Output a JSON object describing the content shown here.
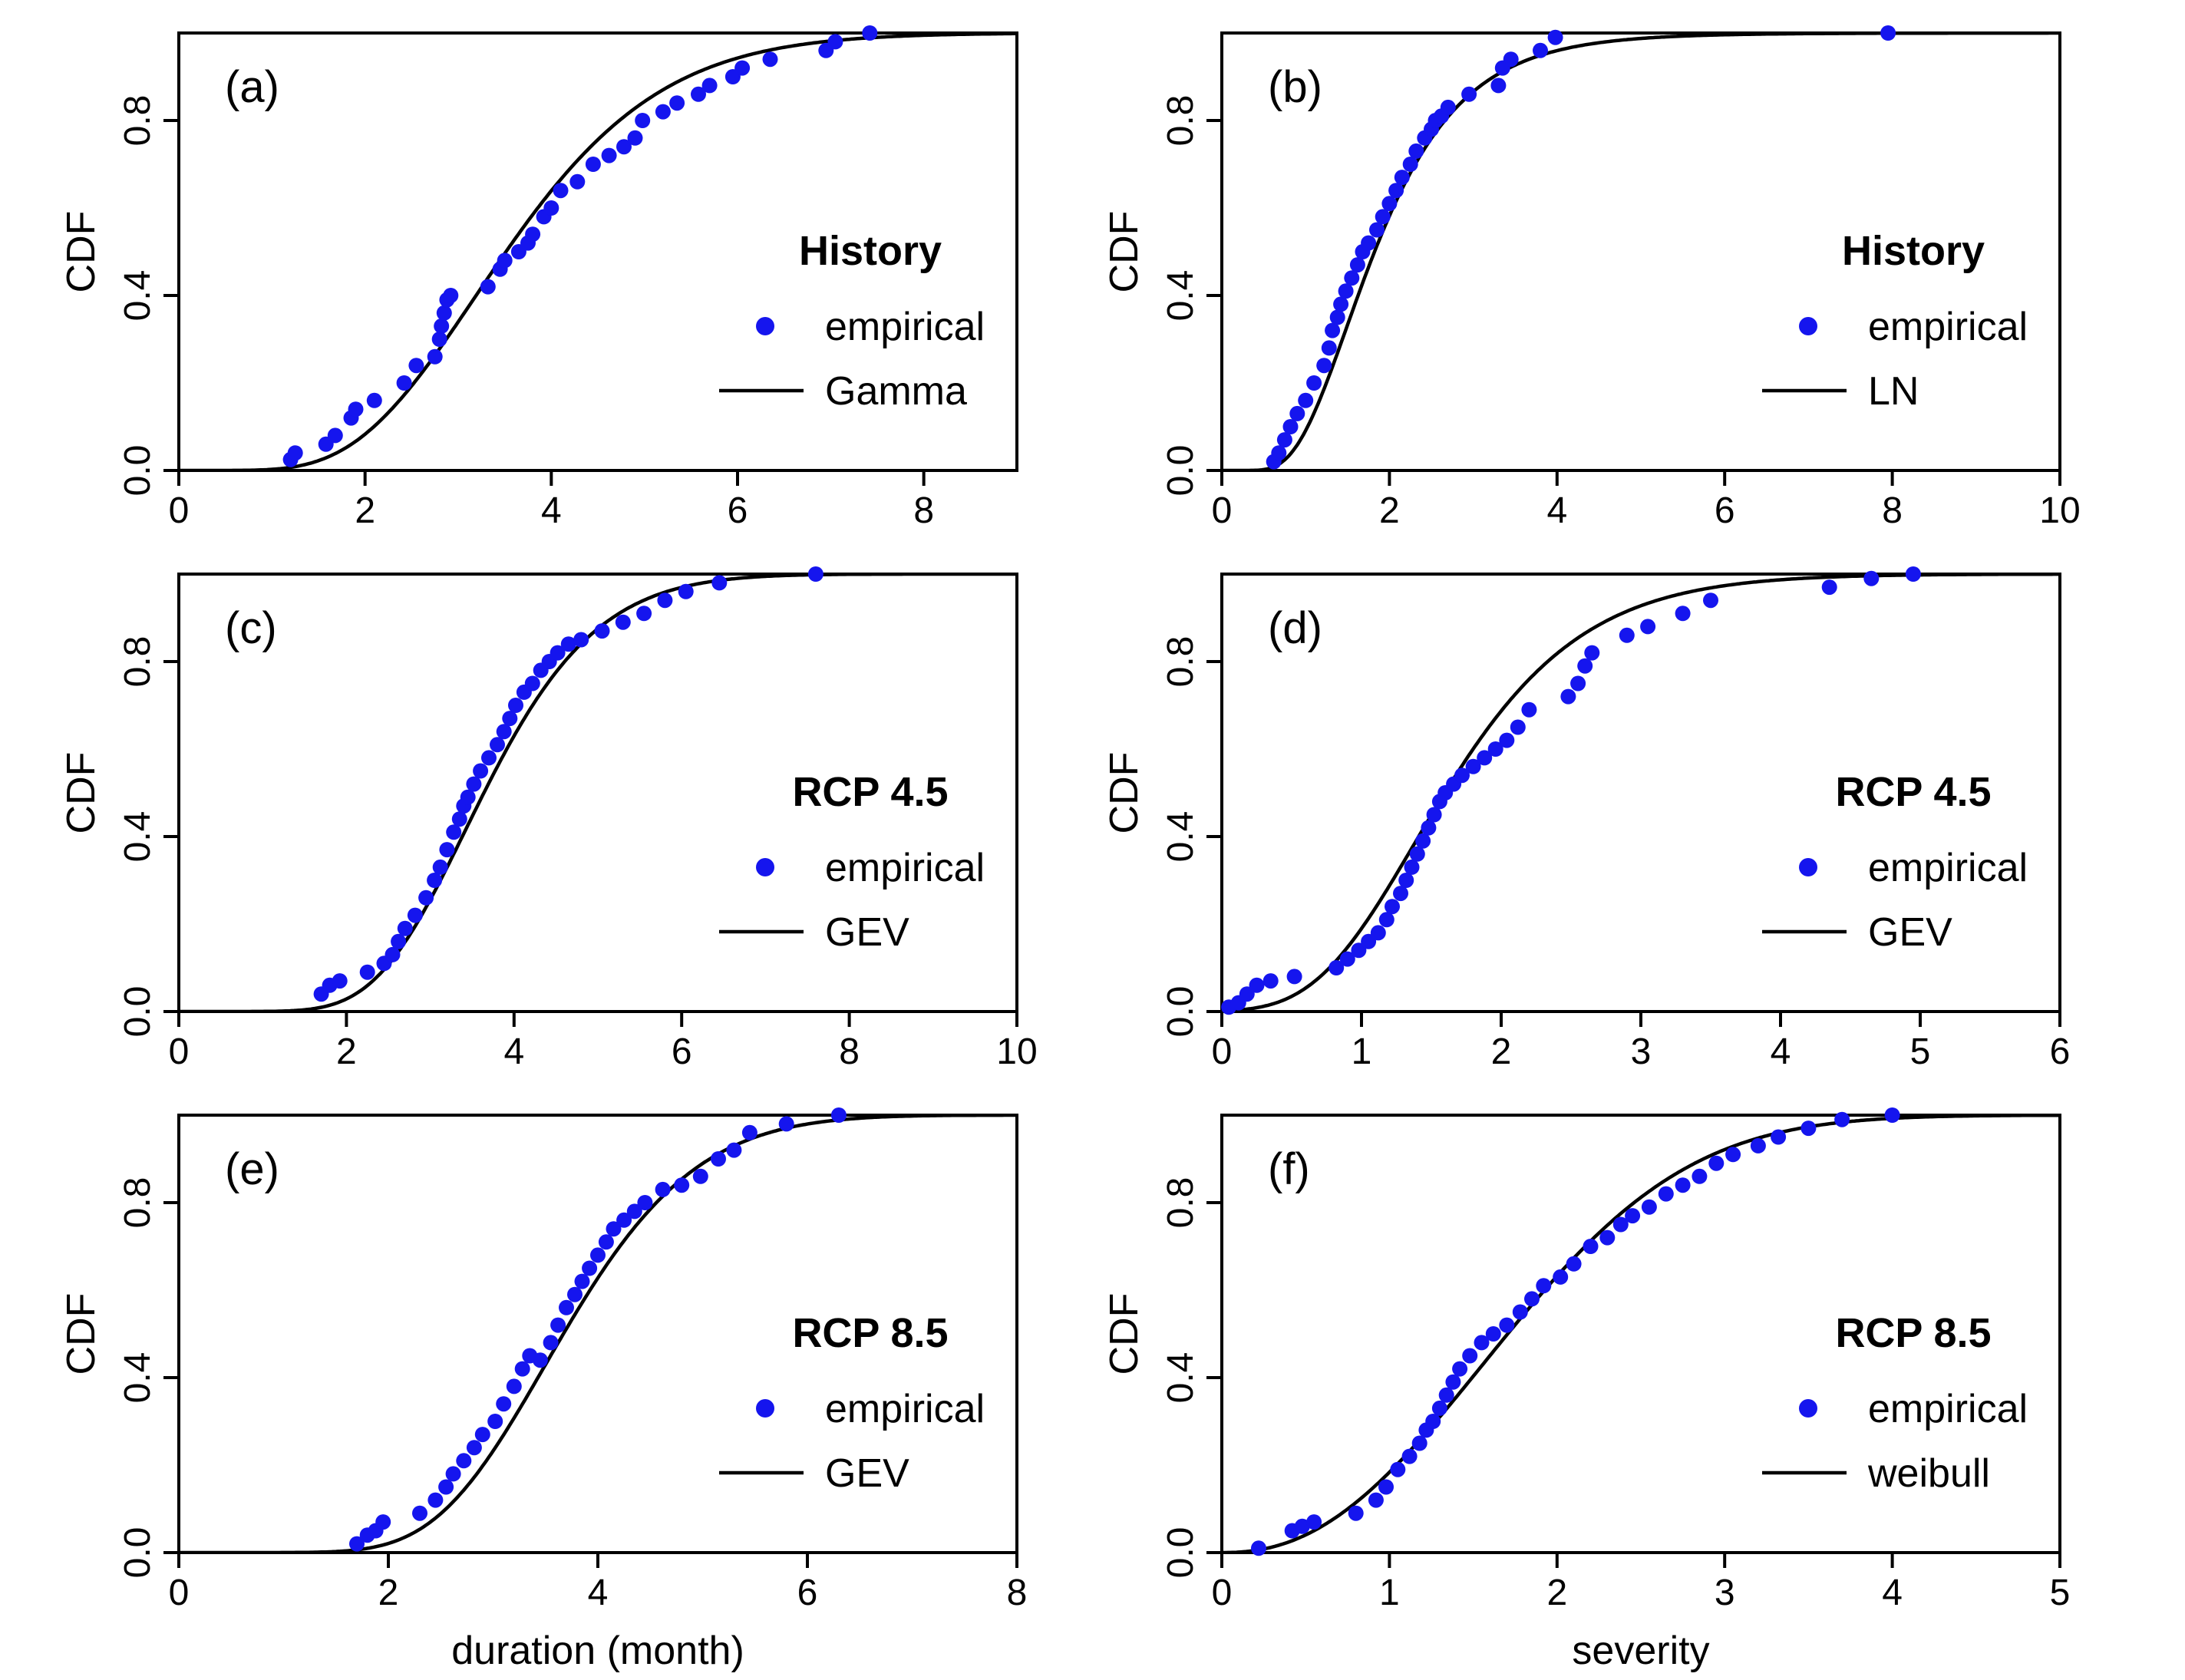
{
  "axis_colors": {
    "empirical": "#1515ee",
    "fitted": "#000000"
  },
  "chart_data": [
    {
      "type": "scatter",
      "panel_label": "(a)",
      "xlabel": "",
      "ylabel": "CDF",
      "xlim": [
        0,
        9
      ],
      "ylim": [
        0,
        1
      ],
      "xticks": [
        0,
        2,
        4,
        6,
        8
      ],
      "yticks": [
        0.0,
        0.4,
        0.8
      ],
      "ytick_labels": [
        "0.0",
        "0.4",
        "0.8"
      ],
      "legend_title": "History",
      "legend_position": "right",
      "series": [
        {
          "name": "empirical",
          "kind": "points",
          "x": [
            1.2,
            1.25,
            1.58,
            1.68,
            1.85,
            1.9,
            2.1,
            2.42,
            2.55,
            2.75,
            2.8,
            2.82,
            2.85,
            2.88,
            2.92,
            3.32,
            3.45,
            3.5,
            3.65,
            3.75,
            3.8,
            3.92,
            4.0,
            4.1,
            4.28,
            4.45,
            4.62,
            4.78,
            4.9,
            4.98,
            5.2,
            5.35,
            5.58,
            5.7,
            5.95,
            6.05,
            6.35,
            6.95,
            7.05,
            7.42
          ],
          "y": [
            0.025,
            0.04,
            0.06,
            0.08,
            0.12,
            0.14,
            0.16,
            0.2,
            0.24,
            0.26,
            0.3,
            0.33,
            0.36,
            0.39,
            0.4,
            0.42,
            0.46,
            0.48,
            0.5,
            0.52,
            0.54,
            0.58,
            0.6,
            0.64,
            0.66,
            0.7,
            0.72,
            0.74,
            0.76,
            0.8,
            0.82,
            0.84,
            0.86,
            0.88,
            0.9,
            0.92,
            0.94,
            0.96,
            0.98,
            1.0
          ]
        },
        {
          "name": "Gamma",
          "kind": "line",
          "dist": "gamma",
          "params": {
            "shape": 7.5,
            "scale": 0.49
          }
        }
      ]
    },
    {
      "type": "scatter",
      "panel_label": "(b)",
      "xlabel": "",
      "ylabel": "CDF",
      "xlim": [
        0,
        10
      ],
      "ylim": [
        0,
        1
      ],
      "xticks": [
        0,
        2,
        4,
        6,
        8,
        10
      ],
      "yticks": [
        0.0,
        0.4,
        0.8
      ],
      "ytick_labels": [
        "0.0",
        "0.4",
        "0.8"
      ],
      "legend_title": "History",
      "legend_position": "right",
      "series": [
        {
          "name": "empirical",
          "kind": "points",
          "x": [
            0.62,
            0.68,
            0.75,
            0.82,
            0.9,
            1.0,
            1.1,
            1.22,
            1.28,
            1.32,
            1.38,
            1.42,
            1.48,
            1.55,
            1.62,
            1.68,
            1.75,
            1.85,
            1.92,
            2.0,
            2.08,
            2.15,
            2.25,
            2.32,
            2.42,
            2.5,
            2.55,
            2.62,
            2.7,
            2.95,
            3.3,
            3.35,
            3.45,
            3.8,
            3.98,
            7.95
          ],
          "y": [
            0.02,
            0.04,
            0.07,
            0.1,
            0.13,
            0.16,
            0.2,
            0.24,
            0.28,
            0.32,
            0.35,
            0.38,
            0.41,
            0.44,
            0.47,
            0.5,
            0.52,
            0.55,
            0.58,
            0.61,
            0.64,
            0.67,
            0.7,
            0.73,
            0.76,
            0.78,
            0.8,
            0.81,
            0.83,
            0.86,
            0.88,
            0.92,
            0.94,
            0.96,
            0.99,
            1.0
          ]
        },
        {
          "name": "LN",
          "kind": "line",
          "dist": "lognormal",
          "params": {
            "mu": 0.6,
            "sigma": 0.45
          }
        }
      ]
    },
    {
      "type": "scatter",
      "panel_label": "(c)",
      "xlabel": "",
      "ylabel": "CDF",
      "xlim": [
        0,
        10
      ],
      "ylim": [
        0,
        1
      ],
      "xticks": [
        0,
        2,
        4,
        6,
        8,
        10
      ],
      "yticks": [
        0.0,
        0.4,
        0.8
      ],
      "ytick_labels": [
        "0.0",
        "0.4",
        "0.8"
      ],
      "legend_title": "RCP 4.5",
      "legend_position": "right",
      "series": [
        {
          "name": "empirical",
          "kind": "points",
          "x": [
            1.7,
            1.8,
            1.92,
            2.25,
            2.45,
            2.55,
            2.62,
            2.7,
            2.82,
            2.95,
            3.05,
            3.12,
            3.2,
            3.28,
            3.35,
            3.4,
            3.45,
            3.52,
            3.6,
            3.7,
            3.8,
            3.88,
            3.95,
            4.02,
            4.12,
            4.22,
            4.32,
            4.42,
            4.52,
            4.65,
            4.8,
            5.05,
            5.3,
            5.55,
            5.8,
            6.05,
            6.45,
            7.6
          ],
          "y": [
            0.04,
            0.06,
            0.07,
            0.09,
            0.11,
            0.13,
            0.16,
            0.19,
            0.22,
            0.26,
            0.3,
            0.33,
            0.37,
            0.41,
            0.44,
            0.47,
            0.49,
            0.52,
            0.55,
            0.58,
            0.61,
            0.64,
            0.67,
            0.7,
            0.73,
            0.75,
            0.78,
            0.8,
            0.82,
            0.84,
            0.85,
            0.87,
            0.89,
            0.91,
            0.94,
            0.96,
            0.98,
            1.0
          ]
        },
        {
          "name": "GEV",
          "kind": "line",
          "dist": "gev",
          "params": {
            "mu": 3.3,
            "sigma": 0.95,
            "xi": -0.12
          }
        }
      ]
    },
    {
      "type": "scatter",
      "panel_label": "(d)",
      "xlabel": "",
      "ylabel": "CDF",
      "xlim": [
        0,
        6
      ],
      "ylim": [
        0,
        1
      ],
      "xticks": [
        0,
        1,
        2,
        3,
        4,
        5,
        6
      ],
      "yticks": [
        0.0,
        0.4,
        0.8
      ],
      "ytick_labels": [
        "0.0",
        "0.4",
        "0.8"
      ],
      "legend_title": "RCP 4.5",
      "legend_position": "right",
      "series": [
        {
          "name": "empirical",
          "kind": "points",
          "x": [
            0.05,
            0.12,
            0.18,
            0.25,
            0.35,
            0.52,
            0.82,
            0.9,
            0.98,
            1.05,
            1.12,
            1.18,
            1.22,
            1.28,
            1.32,
            1.36,
            1.4,
            1.44,
            1.48,
            1.52,
            1.56,
            1.6,
            1.66,
            1.72,
            1.8,
            1.88,
            1.96,
            2.04,
            2.12,
            2.2,
            2.48,
            2.55,
            2.6,
            2.65,
            2.9,
            3.05,
            3.3,
            3.5,
            4.35,
            4.65,
            4.95
          ],
          "y": [
            0.01,
            0.02,
            0.04,
            0.06,
            0.07,
            0.08,
            0.1,
            0.12,
            0.14,
            0.16,
            0.18,
            0.21,
            0.24,
            0.27,
            0.3,
            0.33,
            0.36,
            0.39,
            0.42,
            0.45,
            0.48,
            0.5,
            0.52,
            0.54,
            0.56,
            0.58,
            0.6,
            0.62,
            0.65,
            0.69,
            0.72,
            0.75,
            0.79,
            0.82,
            0.86,
            0.88,
            0.91,
            0.94,
            0.97,
            0.99,
            1.0
          ]
        },
        {
          "name": "GEV",
          "kind": "line",
          "dist": "gev",
          "params": {
            "mu": 1.35,
            "sigma": 0.68,
            "xi": -0.05
          }
        }
      ]
    },
    {
      "type": "scatter",
      "panel_label": "(e)",
      "xlabel": "duration (month)",
      "ylabel": "CDF",
      "xlim": [
        0,
        8
      ],
      "ylim": [
        0,
        1
      ],
      "xticks": [
        0,
        2,
        4,
        6,
        8
      ],
      "yticks": [
        0.0,
        0.4,
        0.8
      ],
      "ytick_labels": [
        "0.0",
        "0.4",
        "0.8"
      ],
      "legend_title": "RCP 8.5",
      "legend_position": "right",
      "series": [
        {
          "name": "empirical",
          "kind": "points",
          "x": [
            1.7,
            1.8,
            1.88,
            1.95,
            2.3,
            2.45,
            2.55,
            2.62,
            2.72,
            2.82,
            2.9,
            3.02,
            3.1,
            3.2,
            3.28,
            3.35,
            3.45,
            3.55,
            3.62,
            3.7,
            3.78,
            3.85,
            3.92,
            4.0,
            4.08,
            4.15,
            4.25,
            4.35,
            4.45,
            4.62,
            4.8,
            4.98,
            5.15,
            5.3,
            5.45,
            5.8,
            6.3
          ],
          "y": [
            0.02,
            0.04,
            0.05,
            0.07,
            0.09,
            0.12,
            0.15,
            0.18,
            0.21,
            0.24,
            0.27,
            0.3,
            0.34,
            0.38,
            0.42,
            0.45,
            0.44,
            0.48,
            0.52,
            0.56,
            0.59,
            0.62,
            0.65,
            0.68,
            0.71,
            0.74,
            0.76,
            0.78,
            0.8,
            0.83,
            0.84,
            0.86,
            0.9,
            0.92,
            0.96,
            0.98,
            1.0
          ]
        },
        {
          "name": "GEV",
          "kind": "line",
          "dist": "gev",
          "params": {
            "mu": 3.35,
            "sigma": 0.9,
            "xi": -0.15
          }
        }
      ]
    },
    {
      "type": "scatter",
      "panel_label": "(f)",
      "xlabel": "severity",
      "ylabel": "CDF",
      "xlim": [
        0,
        5
      ],
      "ylim": [
        0,
        1
      ],
      "xticks": [
        0,
        1,
        2,
        3,
        4,
        5
      ],
      "yticks": [
        0.0,
        0.4,
        0.8
      ],
      "ytick_labels": [
        "0.0",
        "0.4",
        "0.8"
      ],
      "legend_title": "RCP 8.5",
      "legend_position": "right",
      "series": [
        {
          "name": "empirical",
          "kind": "points",
          "x": [
            0.22,
            0.42,
            0.48,
            0.55,
            0.8,
            0.92,
            0.98,
            1.05,
            1.12,
            1.18,
            1.22,
            1.26,
            1.3,
            1.34,
            1.38,
            1.42,
            1.48,
            1.55,
            1.62,
            1.7,
            1.78,
            1.85,
            1.92,
            2.02,
            2.1,
            2.2,
            2.3,
            2.38,
            2.45,
            2.55,
            2.65,
            2.75,
            2.85,
            2.95,
            3.05,
            3.2,
            3.32,
            3.5,
            3.7,
            4.0
          ],
          "y": [
            0.01,
            0.05,
            0.06,
            0.07,
            0.09,
            0.12,
            0.15,
            0.19,
            0.22,
            0.25,
            0.28,
            0.3,
            0.33,
            0.36,
            0.39,
            0.42,
            0.45,
            0.48,
            0.5,
            0.52,
            0.55,
            0.58,
            0.61,
            0.63,
            0.66,
            0.7,
            0.72,
            0.75,
            0.77,
            0.79,
            0.82,
            0.84,
            0.86,
            0.89,
            0.91,
            0.93,
            0.95,
            0.97,
            0.99,
            1.0
          ]
        },
        {
          "name": "weibull",
          "kind": "line",
          "dist": "weibull",
          "params": {
            "k": 2.3,
            "lambda": 2.0
          }
        }
      ]
    }
  ]
}
